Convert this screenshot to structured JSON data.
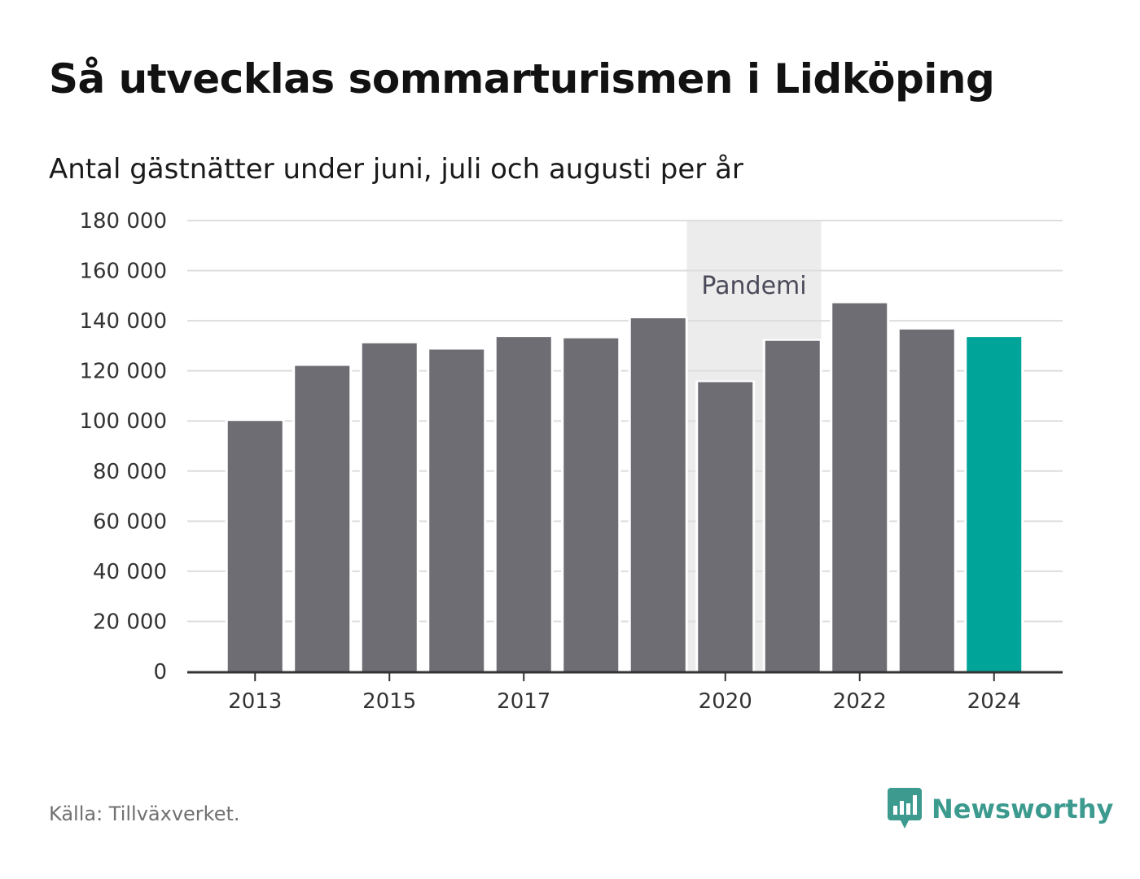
{
  "header": {
    "title": "Så utvecklas sommarturismen i Lidköping",
    "subtitle": "Antal gästnätter under juni, juli och augusti per år"
  },
  "footer": {
    "source": "Källa: Tillväxverket.",
    "brand": "Newsworthy",
    "brand_icon": "bar-chart-speech-bubble-icon"
  },
  "colors": {
    "bar": "#6e6d74",
    "highlight": "#00a499",
    "shade": "#ececec",
    "grid": "#dddddd",
    "brand": "#3c9a8f"
  },
  "chart_data": {
    "type": "bar",
    "categories": [
      "2013",
      "2014",
      "2015",
      "2016",
      "2017",
      "2018",
      "2019",
      "2020",
      "2021",
      "2022",
      "2023",
      "2024"
    ],
    "values": [
      100000,
      122000,
      131000,
      128500,
      133500,
      133000,
      141000,
      115500,
      132000,
      147000,
      136500,
      133500
    ],
    "highlight_category": "2024",
    "x_tick_labels": [
      "2013",
      "2015",
      "2017",
      "2020",
      "2022",
      "2024"
    ],
    "ylim": [
      0,
      180000
    ],
    "y_ticks": [
      0,
      20000,
      40000,
      60000,
      80000,
      100000,
      120000,
      140000,
      160000,
      180000
    ],
    "y_tick_labels": [
      "0",
      "20 000",
      "40 000",
      "60 000",
      "80 000",
      "100 000",
      "120 000",
      "140 000",
      "160 000",
      "180 000"
    ],
    "annotation": {
      "label": "Pandemi",
      "from_category": "2020",
      "to_category": "2021"
    },
    "grid": true,
    "legend": "none"
  }
}
